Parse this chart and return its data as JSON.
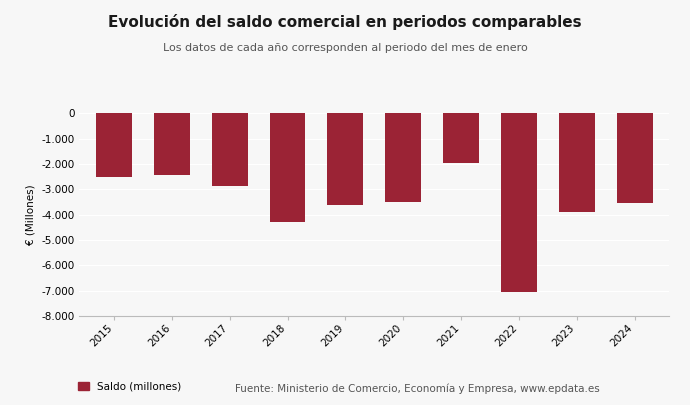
{
  "title": "Evolución del saldo comercial en periodos comparables",
  "subtitle": "Los datos de cada año corresponden al periodo del mes de enero",
  "ylabel": "€ (Millones)",
  "categories": [
    "2015",
    "2016",
    "2017",
    "2018",
    "2019",
    "2020",
    "2021",
    "2022",
    "2023",
    "2024"
  ],
  "values": [
    -2500,
    -2450,
    -2850,
    -4300,
    -3600,
    -3500,
    -1950,
    -7050,
    -3900,
    -3550
  ],
  "bar_color": "#9b2335",
  "ylim": [
    -8000,
    0
  ],
  "yticks": [
    0,
    -1000,
    -2000,
    -3000,
    -4000,
    -5000,
    -6000,
    -7000,
    -8000
  ],
  "ytick_labels": [
    "0",
    "-1.000",
    "-2.000",
    "-3.000",
    "-4.000",
    "-5.000",
    "-6.000",
    "-7.000",
    "-8.000"
  ],
  "legend_label": "Saldo (millones)",
  "source_text": "Fuente: Ministerio de Comercio, Economía y Empresa, www.epdata.es",
  "background_color": "#f7f7f7",
  "grid_color": "#ffffff",
  "title_fontsize": 11,
  "subtitle_fontsize": 8,
  "axis_fontsize": 7.5,
  "legend_fontsize": 7.5
}
